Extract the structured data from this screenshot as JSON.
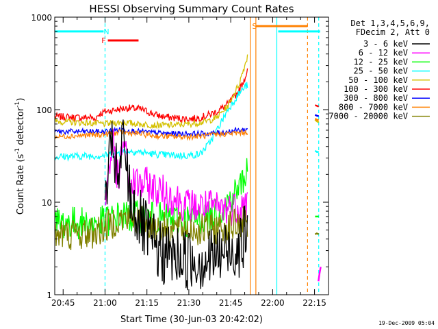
{
  "chart_data": {
    "type": "line",
    "title": "HESSI Observing Summary Count Rates",
    "xlabel": "Start Time (30-Jun-03 20:42:02)",
    "ylabel_parts": [
      "Count Rate (s",
      "-1",
      " detector",
      "-1",
      ")"
    ],
    "yscale": "log",
    "xlim": [
      42,
      140
    ],
    "ylim": [
      1,
      1000
    ],
    "x_ticks": [
      45,
      60,
      75,
      90,
      105,
      120,
      135
    ],
    "x_tick_labels": [
      "20:45",
      "21:00",
      "21:15",
      "21:30",
      "21:45",
      "22:00",
      "22:15"
    ],
    "y_ticks": [
      1,
      10,
      100,
      1000
    ],
    "y_tick_labels": [
      "1",
      "10",
      "100",
      "1000"
    ],
    "x_units": "minutes after 20:00 UT",
    "legend": {
      "placement": "right, outside plot",
      "header": [
        "Det 1,3,4,5,6,9,",
        "FDecim 2, Att 0"
      ],
      "entries": [
        {
          "label": "3 - 6 keV",
          "color": "#000000"
        },
        {
          "label": "6 - 12 keV",
          "color": "#ff00ff"
        },
        {
          "label": "12 - 25 keV",
          "color": "#00ff00"
        },
        {
          "label": "25 - 50 keV",
          "color": "#00ffff"
        },
        {
          "label": "50 - 100 keV",
          "color": "#d4c000"
        },
        {
          "label": "100 - 300 keV",
          "color": "#ff0000"
        },
        {
          "label": "300 - 800 keV",
          "color": "#0000ff"
        },
        {
          "label": "800 - 7000 keV",
          "color": "#ff8000"
        },
        {
          "label": "7000 - 20000 keV",
          "color": "#808000"
        }
      ]
    },
    "flags": [
      {
        "label": "N",
        "color": "#00ffff",
        "x_start": 42,
        "x_end": 59.5,
        "y": 700,
        "label_x": 60.5
      },
      {
        "label": "F",
        "color": "#ff0000",
        "x_start": 61,
        "x_end": 72,
        "y": 560,
        "label_x": 59.5
      },
      {
        "label": "S",
        "color": "#ff8000",
        "x_start": 114,
        "x_end": 132.5,
        "y": 800,
        "label_x": 113.5
      },
      {
        "label": "",
        "color": "#00ffff",
        "x_start": 122,
        "x_end": 137,
        "y": 700,
        "label_x": null
      }
    ],
    "vertical_lines": [
      {
        "x": 60.0,
        "color": "#00ffff",
        "style": "dashed"
      },
      {
        "x": 112.0,
        "color": "#ff8000",
        "style": "solid"
      },
      {
        "x": 114.0,
        "color": "#ff8000",
        "style": "solid"
      },
      {
        "x": 121.5,
        "color": "#00ffff",
        "style": "solid"
      },
      {
        "x": 132.5,
        "color": "#ff8000",
        "style": "dashed"
      },
      {
        "x": 136.5,
        "color": "#00ffff",
        "style": "dashed"
      }
    ],
    "series": [
      {
        "name": "100 - 300 keV",
        "color": "#ff0000",
        "noise": 0.04,
        "points": [
          [
            42,
            84
          ],
          [
            52,
            82
          ],
          [
            55,
            83
          ],
          [
            56,
            78
          ],
          [
            58,
            90
          ],
          [
            60,
            95
          ],
          [
            64,
            100
          ],
          [
            68,
            104
          ],
          [
            72,
            102
          ],
          [
            75,
            96
          ],
          [
            78,
            88
          ],
          [
            81,
            84
          ],
          [
            84,
            82
          ],
          [
            88,
            80
          ],
          [
            92,
            80
          ],
          [
            96,
            85
          ],
          [
            100,
            95
          ],
          [
            104,
            115
          ],
          [
            108,
            160
          ],
          [
            110,
            220
          ],
          [
            111,
            265
          ]
        ],
        "tail": [
          [
            135.2,
            112
          ],
          [
            135.8,
            110
          ],
          [
            136.5,
            108
          ]
        ]
      },
      {
        "name": "50 - 100 keV",
        "color": "#d4c000",
        "noise": 0.035,
        "points": [
          [
            42,
            75
          ],
          [
            60,
            70
          ],
          [
            66,
            73
          ],
          [
            72,
            70
          ],
          [
            78,
            68
          ],
          [
            84,
            68
          ],
          [
            90,
            70
          ],
          [
            96,
            74
          ],
          [
            100,
            82
          ],
          [
            104,
            110
          ],
          [
            108,
            190
          ],
          [
            110,
            300
          ],
          [
            111,
            380
          ]
        ],
        "tail": [
          [
            135.2,
            78
          ],
          [
            135.8,
            75
          ],
          [
            136.5,
            73
          ]
        ]
      },
      {
        "name": "25 - 50 keV",
        "color": "#00ffff",
        "noise": 0.04,
        "points": [
          [
            42,
            31
          ],
          [
            60,
            32
          ],
          [
            64,
            34
          ],
          [
            68,
            36
          ],
          [
            72,
            35
          ],
          [
            78,
            33
          ],
          [
            84,
            32
          ],
          [
            90,
            32
          ],
          [
            94,
            33
          ],
          [
            97,
            42
          ],
          [
            100,
            60
          ],
          [
            104,
            100
          ],
          [
            108,
            150
          ],
          [
            110,
            175
          ],
          [
            111,
            185
          ]
        ],
        "tail": [
          [
            135.2,
            36
          ],
          [
            135.8,
            35
          ],
          [
            136.5,
            35
          ]
        ]
      },
      {
        "name": "300 - 800 keV",
        "color": "#0000ff",
        "noise": 0.03,
        "points": [
          [
            42,
            58
          ],
          [
            60,
            58
          ],
          [
            66,
            61
          ],
          [
            72,
            58
          ],
          [
            78,
            56
          ],
          [
            84,
            55
          ],
          [
            90,
            55
          ],
          [
            96,
            55
          ],
          [
            100,
            56
          ],
          [
            104,
            58
          ],
          [
            108,
            60
          ],
          [
            111,
            61
          ]
        ],
        "tail": [
          [
            135.2,
            88
          ],
          [
            135.8,
            86
          ],
          [
            136.5,
            85
          ]
        ]
      },
      {
        "name": "800 - 7000 keV",
        "color": "#ff8000",
        "noise": 0.03,
        "points": [
          [
            42,
            51
          ],
          [
            60,
            54
          ],
          [
            66,
            57
          ],
          [
            72,
            55
          ],
          [
            78,
            52
          ],
          [
            84,
            51
          ],
          [
            90,
            51
          ],
          [
            96,
            52
          ],
          [
            100,
            54
          ],
          [
            104,
            55
          ],
          [
            108,
            56
          ],
          [
            111,
            57
          ]
        ],
        "tail": [
          [
            135.2,
            80
          ],
          [
            135.8,
            78
          ],
          [
            136.5,
            77
          ]
        ]
      },
      {
        "name": "12 - 25 keV",
        "color": "#00ff00",
        "noise": 0.18,
        "points": [
          [
            42,
            6
          ],
          [
            50,
            6
          ],
          [
            55,
            5.8
          ],
          [
            60,
            6.2
          ],
          [
            65,
            7
          ],
          [
            70,
            7
          ],
          [
            76,
            6.8
          ],
          [
            82,
            6.5
          ],
          [
            88,
            6.3
          ],
          [
            94,
            6.6
          ],
          [
            98,
            7.2
          ],
          [
            102,
            8.5
          ],
          [
            106,
            12
          ],
          [
            109,
            16
          ],
          [
            111,
            24
          ]
        ],
        "tail": [
          [
            135.2,
            7
          ],
          [
            135.8,
            7
          ],
          [
            136.5,
            7
          ]
        ]
      },
      {
        "name": "6 - 12 keV",
        "color": "#ff00ff",
        "noise": 0.2,
        "points": [
          [
            60,
            8
          ],
          [
            61,
            22
          ],
          [
            62,
            30
          ],
          [
            63,
            45
          ],
          [
            64,
            20
          ],
          [
            65,
            17
          ],
          [
            66,
            38
          ],
          [
            67,
            46
          ],
          [
            68,
            20
          ],
          [
            69,
            14
          ],
          [
            70,
            16
          ],
          [
            72,
            16
          ],
          [
            76,
            15
          ],
          [
            80,
            13
          ],
          [
            85,
            11
          ],
          [
            90,
            9
          ],
          [
            95,
            9
          ],
          [
            100,
            8.5
          ],
          [
            104,
            8.6
          ],
          [
            108,
            9
          ],
          [
            111,
            10
          ]
        ],
        "tail": [
          [
            136.4,
            1.4
          ],
          [
            136.8,
            1.7
          ],
          [
            137.2,
            2.0
          ]
        ]
      },
      {
        "name": "7000 - 20000 keV",
        "color": "#808000",
        "noise": 0.18,
        "points": [
          [
            42,
            4.5
          ],
          [
            55,
            4.6
          ],
          [
            60,
            5.2
          ],
          [
            64,
            6.5
          ],
          [
            70,
            6.5
          ],
          [
            76,
            5.8
          ],
          [
            82,
            5.2
          ],
          [
            88,
            5.2
          ],
          [
            94,
            5.0
          ],
          [
            100,
            5.2
          ],
          [
            106,
            5.6
          ],
          [
            111,
            6.2
          ]
        ],
        "tail": [
          [
            135.2,
            4.5
          ],
          [
            135.8,
            4.6
          ],
          [
            136.5,
            4.5
          ]
        ]
      },
      {
        "name": "3 - 6 keV",
        "color": "#000000",
        "noise": 0.35,
        "points": [
          [
            60,
            7
          ],
          [
            61,
            20
          ],
          [
            62,
            30
          ],
          [
            63,
            45
          ],
          [
            64,
            20
          ],
          [
            65,
            15
          ],
          [
            66,
            38
          ],
          [
            67,
            44
          ],
          [
            68,
            20
          ],
          [
            69,
            12
          ],
          [
            71,
            8
          ],
          [
            74,
            5
          ],
          [
            77,
            3.5
          ],
          [
            80,
            2.8
          ],
          [
            84,
            2.6
          ],
          [
            88,
            2.5
          ],
          [
            92,
            2.4
          ],
          [
            96,
            2.4
          ],
          [
            100,
            2.6
          ],
          [
            104,
            3
          ],
          [
            108,
            3.4
          ],
          [
            111,
            4.5
          ]
        ],
        "tail": []
      }
    ]
  },
  "footer": {
    "timestamp": "19-Dec-2009 05:04"
  }
}
